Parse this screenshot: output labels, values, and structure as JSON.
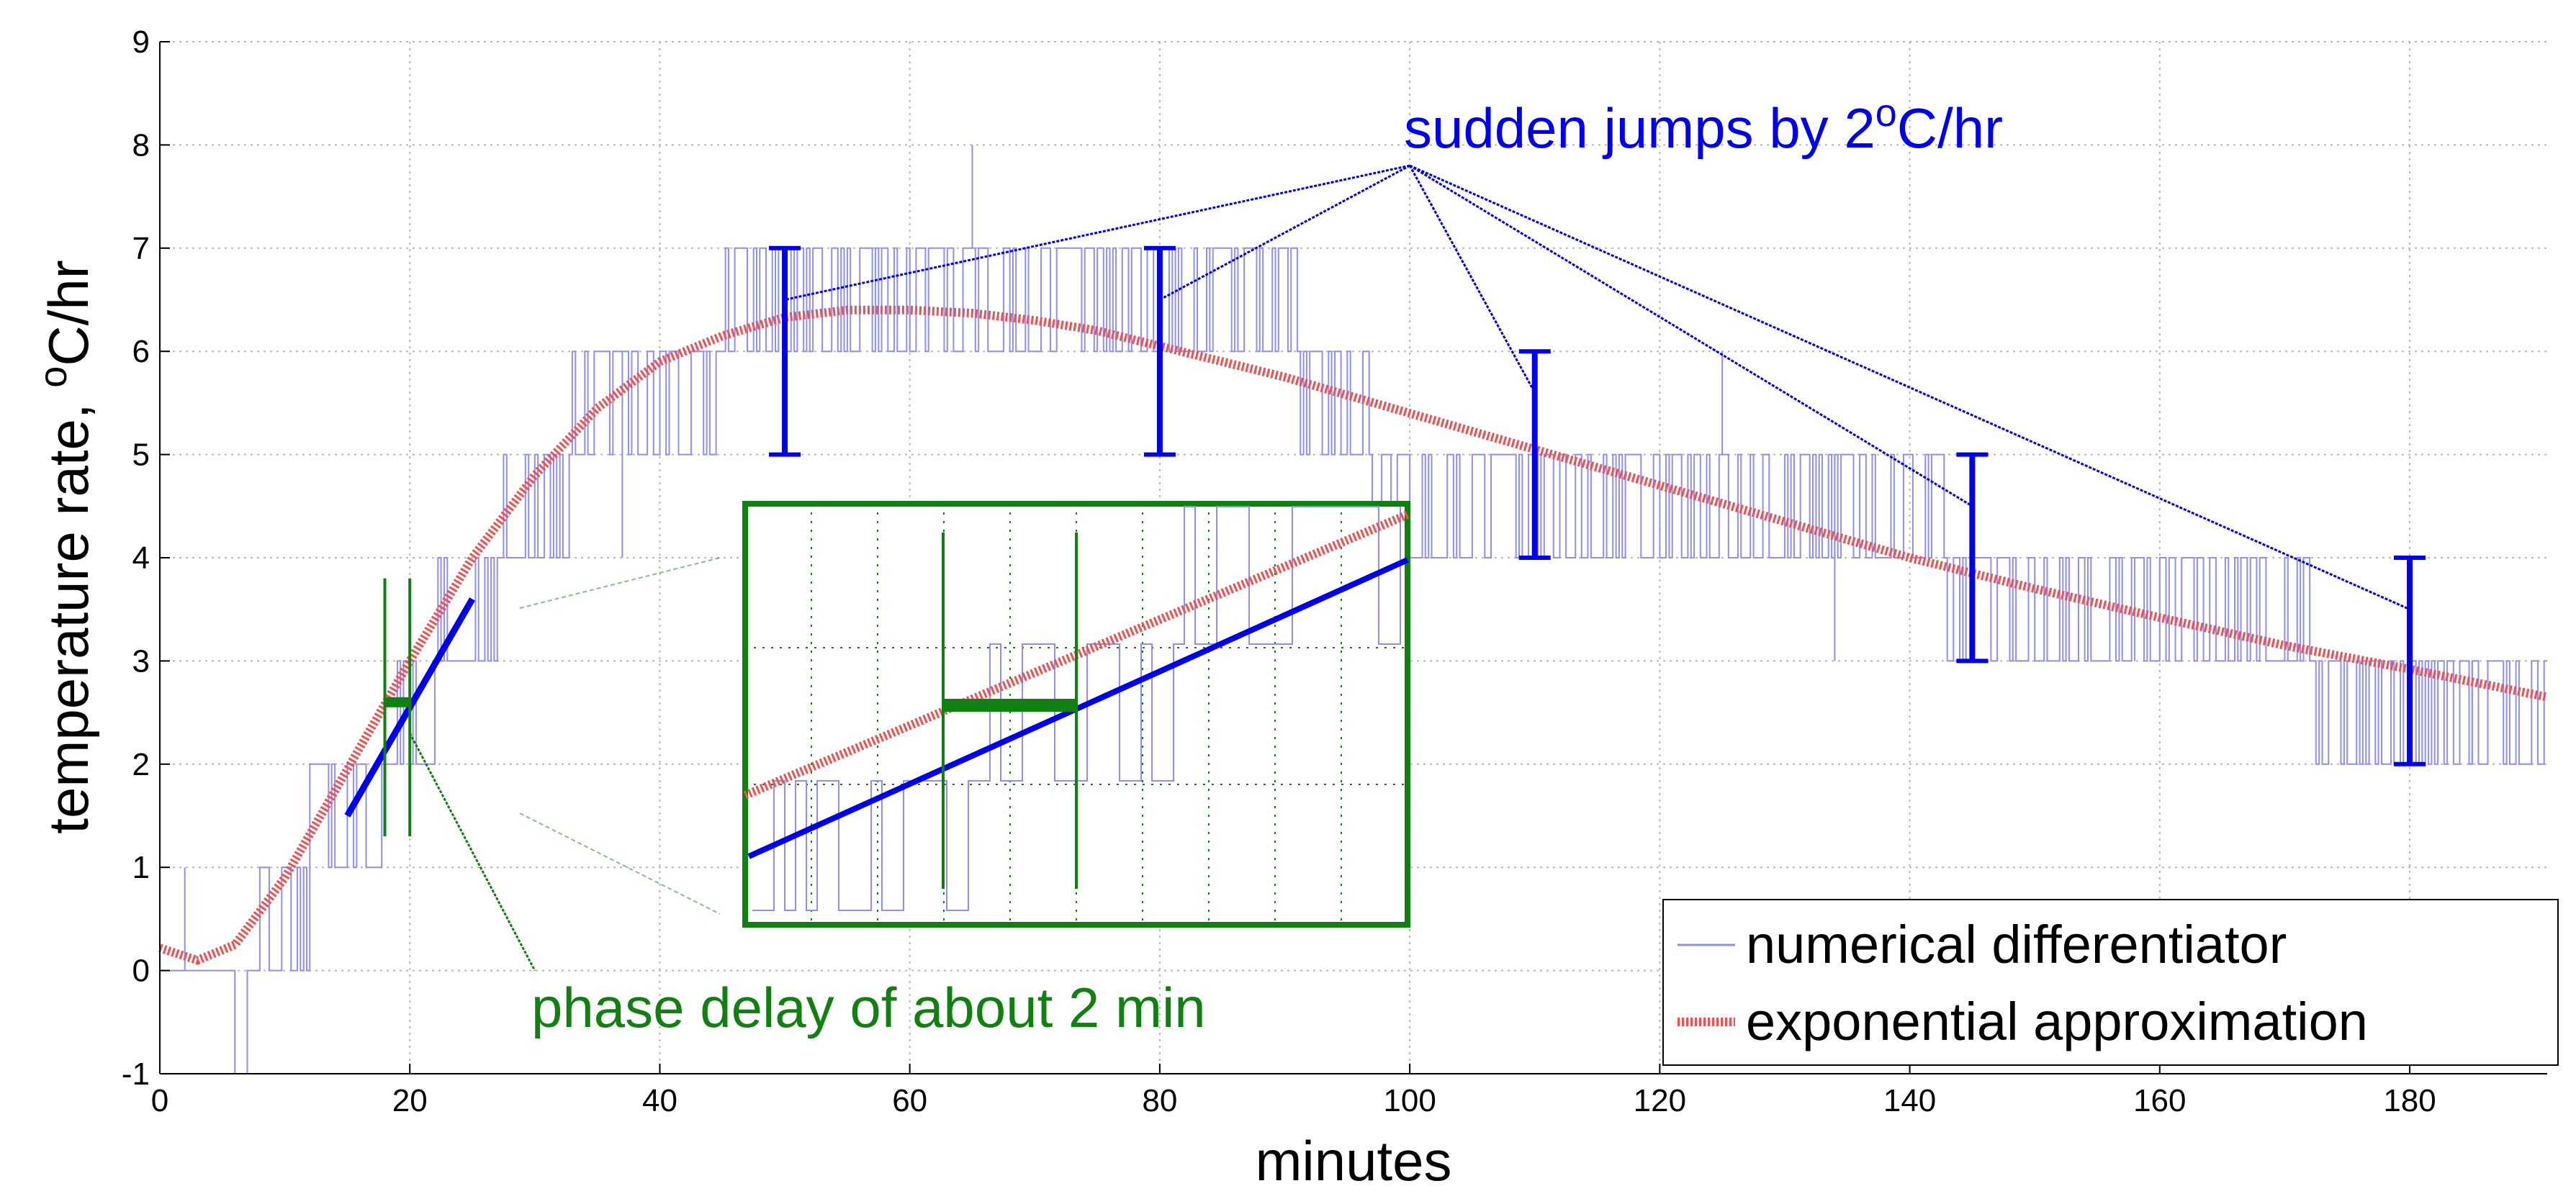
{
  "chart_data": {
    "type": "line",
    "xlabel": "minutes",
    "ylabel_main": "temperature rate, ",
    "ylabel_sup": "o",
    "ylabel_end": "C/hr",
    "xlim": [
      0,
      191
    ],
    "ylim": [
      -1,
      9
    ],
    "xticks": [
      0,
      20,
      40,
      60,
      80,
      100,
      120,
      140,
      160,
      180
    ],
    "yticks": [
      -1,
      0,
      1,
      2,
      3,
      4,
      5,
      6,
      7,
      8,
      9
    ],
    "grid": true,
    "legend_position": "bottom-right",
    "colors": {
      "differentiator": "#8f8ff2",
      "exponential": "#f05050",
      "annot_blue": "#0000ee",
      "annot_green": "#108010",
      "grid": "#b8b8b8"
    },
    "series": [
      {
        "name": "numerical differentiator",
        "step_values": [
          [
            0,
            0
          ],
          [
            7,
            1
          ],
          [
            12,
            2
          ],
          [
            18,
            3
          ],
          [
            22,
            4
          ],
          [
            27,
            5
          ],
          [
            33,
            6
          ],
          [
            45,
            7
          ],
          [
            91,
            6
          ],
          [
            97,
            5
          ],
          [
            110,
            5
          ],
          [
            143,
            4
          ],
          [
            172,
            3
          ]
        ],
        "spikes": [
          [
            65,
            8
          ],
          [
            2,
            1
          ],
          [
            20,
            3
          ],
          [
            37,
            4
          ],
          [
            125,
            6
          ],
          [
            134,
            3
          ],
          [
            158,
            3
          ],
          [
            185,
            2
          ]
        ]
      },
      {
        "name": "exponential approximation",
        "x": [
          0,
          3,
          6,
          10,
          15,
          20,
          25,
          30,
          35,
          40,
          45,
          50,
          55,
          60,
          65,
          70,
          75,
          80,
          90,
          100,
          110,
          120,
          130,
          140,
          150,
          160,
          170,
          180,
          191
        ],
        "y": [
          0.22,
          0.1,
          0.25,
          0.9,
          1.95,
          3.0,
          4.0,
          4.8,
          5.45,
          5.9,
          6.15,
          6.33,
          6.4,
          6.4,
          6.37,
          6.3,
          6.2,
          6.05,
          5.75,
          5.4,
          5.05,
          4.7,
          4.35,
          4.0,
          3.7,
          3.42,
          3.15,
          2.92,
          2.65
        ]
      }
    ],
    "jump_markers": [
      {
        "x": 50,
        "y_low": 5,
        "y_high": 7
      },
      {
        "x": 80,
        "y_low": 5,
        "y_high": 7
      },
      {
        "x": 110,
        "y_low": 4,
        "y_high": 6
      },
      {
        "x": 145,
        "y_low": 3,
        "y_high": 5
      },
      {
        "x": 180,
        "y_low": 2,
        "y_high": 4
      }
    ],
    "annotations": {
      "jumps_main": "sudden jumps by 2",
      "jumps_sup": "o",
      "jumps_end": "C/hr",
      "phase_delay": "phase delay of about 2 min"
    }
  }
}
